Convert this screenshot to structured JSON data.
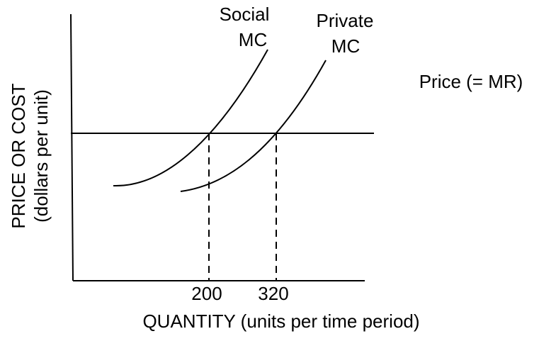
{
  "curves": [
    {
      "label_lines": [
        "Social",
        "MC"
      ]
    },
    {
      "label_lines": [
        "Private",
        "MC"
      ]
    }
  ],
  "price_line": {
    "label": "Price (= MR)"
  },
  "x_axis": {
    "label": "QUANTITY (units per time period)",
    "ticks": [
      "200",
      "320"
    ]
  },
  "y_axis": {
    "label_lines": [
      "PRICE OR COST",
      "(dollars per unit)"
    ]
  }
}
